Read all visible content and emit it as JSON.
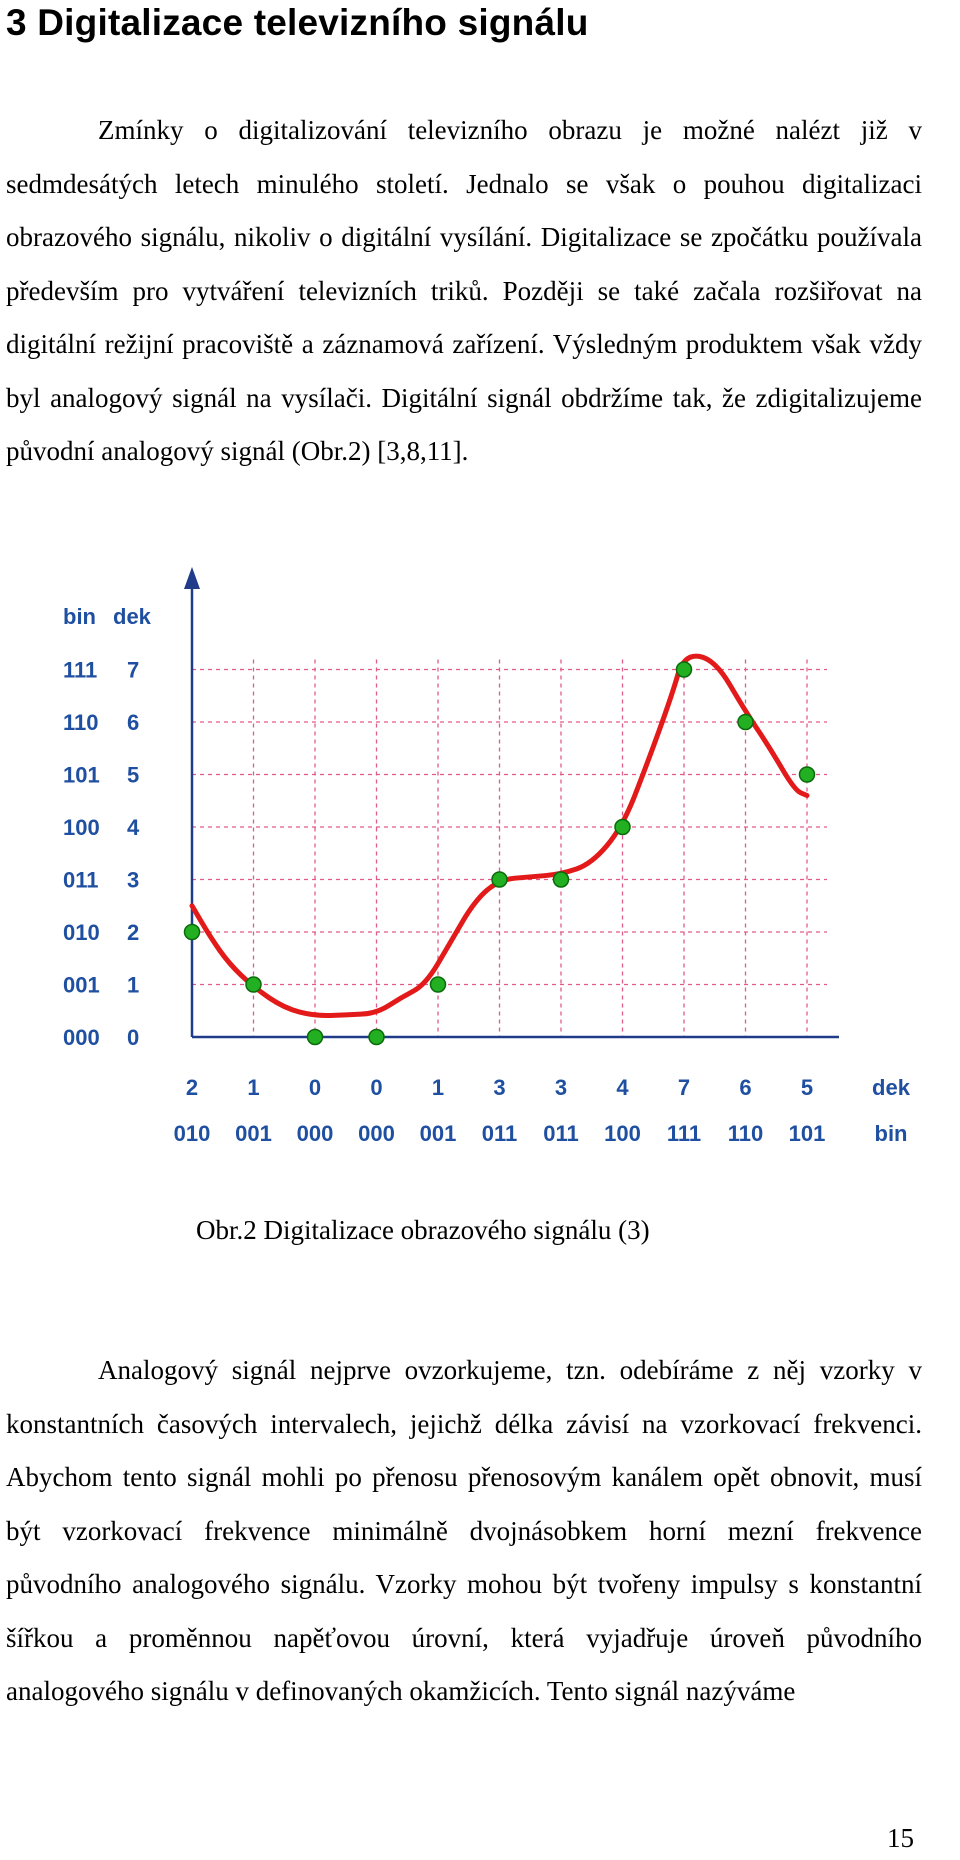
{
  "heading": "3   Digitalizace televizního signálu",
  "paragraph1": "Zmínky o digitalizování televizního obrazu je možné nalézt již v sedmdesátých letech minulého století. Jednalo se však o pouhou digitalizaci obrazového signálu, nikoliv o digitální vysílání. Digitalizace se zpočátku používala především pro vytváření televizních triků. Později se také začala rozšiřovat na digitální režijní pracoviště a záznamová zařízení. Výsledným produktem však vždy byl analogový signál na vysílači. Digitální signál obdržíme tak, že zdigitalizujeme původní analogový signál (Obr.2) [3,8,11].",
  "figure_caption": "Obr.2  Digitalizace obrazového signálu (3)",
  "paragraph2": "Analogový signál nejprve ovzorkujeme, tzn. odebíráme z něj vzorky v konstantních časových intervalech, jejichž délka závisí na vzorkovací frekvenci. Abychom tento signál mohli po přenosu přenosovým kanálem opět obnovit, musí být vzorkovací frekvence minimálně dvojnásobkem horní mezní frekvence původního analogového signálu. Vzorky mohou být tvořeny impulsy s konstantní šířkou a proměnnou napěťovou úrovní, která vyjadřuje úroveň původního analogového signálu v definovaných okamžicích. Tento signál nazýváme",
  "page_number": "15",
  "chart_data": {
    "type": "line",
    "y_header_bin": "bin",
    "y_header_dec": "dek",
    "y_levels": [
      0,
      1,
      2,
      3,
      4,
      5,
      6,
      7
    ],
    "y_levels_bin": [
      "000",
      "001",
      "010",
      "011",
      "100",
      "101",
      "110",
      "111"
    ],
    "x_dec_label": "dek",
    "x_bin_label": "bin",
    "samples_dec": [
      "2",
      "1",
      "0",
      "0",
      "1",
      "3",
      "3",
      "4",
      "7",
      "6",
      "5"
    ],
    "samples_bin": [
      "010",
      "001",
      "000",
      "000",
      "001",
      "011",
      "011",
      "100",
      "111",
      "110",
      "101"
    ],
    "sample_values": [
      2,
      1,
      0,
      0,
      1,
      3,
      3,
      4,
      7,
      6,
      5
    ],
    "analog_signal": [
      [
        0,
        2.5
      ],
      [
        0.3,
        1.9
      ],
      [
        0.6,
        1.4
      ],
      [
        1,
        0.95
      ],
      [
        1.5,
        0.55
      ],
      [
        2,
        0.4
      ],
      [
        2.5,
        0.42
      ],
      [
        3,
        0.45
      ],
      [
        3.4,
        0.75
      ],
      [
        3.8,
        1.0
      ],
      [
        4.2,
        1.8
      ],
      [
        4.6,
        2.6
      ],
      [
        5,
        3.0
      ],
      [
        5.5,
        3.05
      ],
      [
        6,
        3.1
      ],
      [
        6.5,
        3.3
      ],
      [
        7,
        4.0
      ],
      [
        7.4,
        5.2
      ],
      [
        7.8,
        6.5
      ],
      [
        8,
        7.3
      ],
      [
        8.5,
        7.2
      ],
      [
        9,
        6.2
      ],
      [
        9.4,
        5.5
      ],
      [
        9.8,
        4.7
      ],
      [
        10,
        4.6
      ]
    ],
    "colors": {
      "signal": "#e31a1a",
      "sample": "#22b022",
      "grid": "#e05a8a",
      "axis": "#1f3b8a",
      "labels": "#1f4fa0"
    },
    "grid": true
  }
}
